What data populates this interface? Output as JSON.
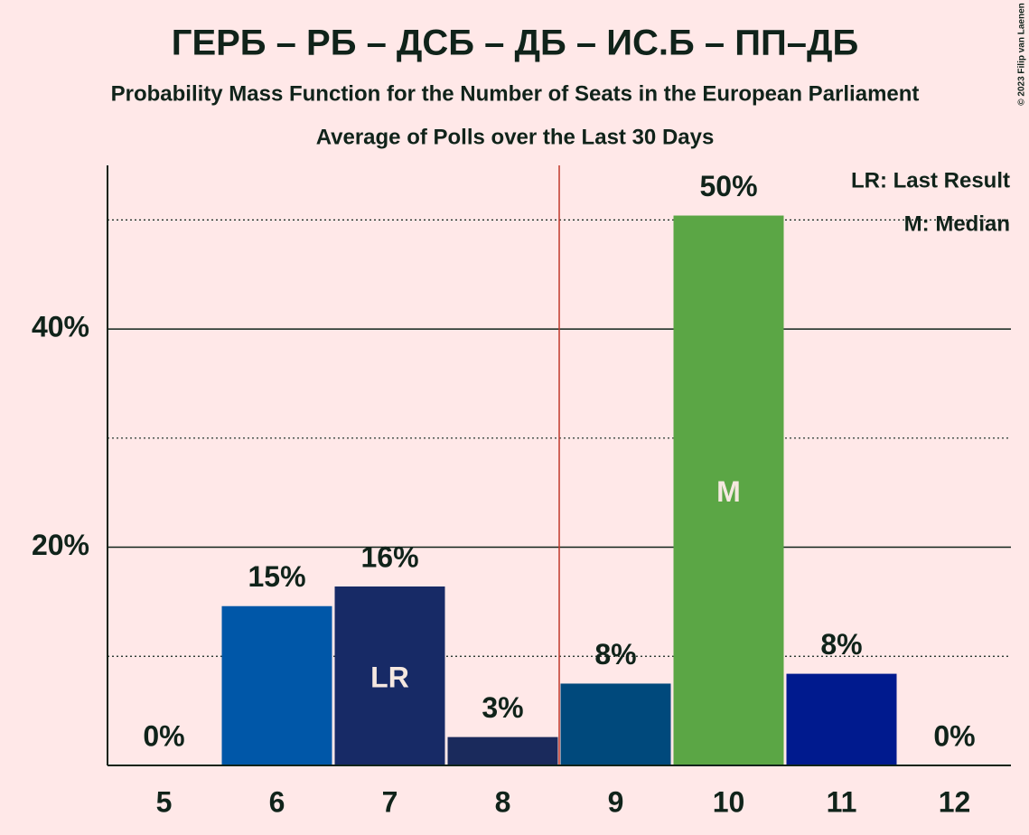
{
  "chart_data": {
    "type": "bar",
    "title": "ГЕРБ – РБ – ДСБ – ДБ – ИС.Б – ПП–ДБ",
    "subtitle": "Probability Mass Function for the Number of Seats in the European Parliament",
    "subtitle2": "Average of Polls over the Last 30 Days",
    "categories": [
      "5",
      "6",
      "7",
      "8",
      "9",
      "10",
      "11",
      "12"
    ],
    "values": [
      0,
      14.6,
      16.4,
      2.6,
      7.5,
      50.4,
      8.4,
      0
    ],
    "value_labels": [
      "0%",
      "15%",
      "16%",
      "3%",
      "8%",
      "50%",
      "8%",
      "0%"
    ],
    "colors": [
      "#0057a8",
      "#0057a8",
      "#172a66",
      "#1a2a5c",
      "#00497c",
      "#5ba645",
      "#001a8e",
      "#001a8e"
    ],
    "bar_labels": [
      null,
      null,
      "LR",
      null,
      null,
      "M",
      null,
      null
    ],
    "ylim": [
      0,
      55
    ],
    "yticks": [
      {
        "value": 20,
        "label": "20%"
      },
      {
        "value": 40,
        "label": "40%"
      }
    ],
    "minor_yticks": [
      10,
      30,
      50
    ],
    "vline_x": 8.5,
    "vline_color": "#c0392b",
    "legend": [
      "LR: Last Result",
      "M: Median"
    ],
    "copyright": "© 2023 Filip van Laenen"
  }
}
